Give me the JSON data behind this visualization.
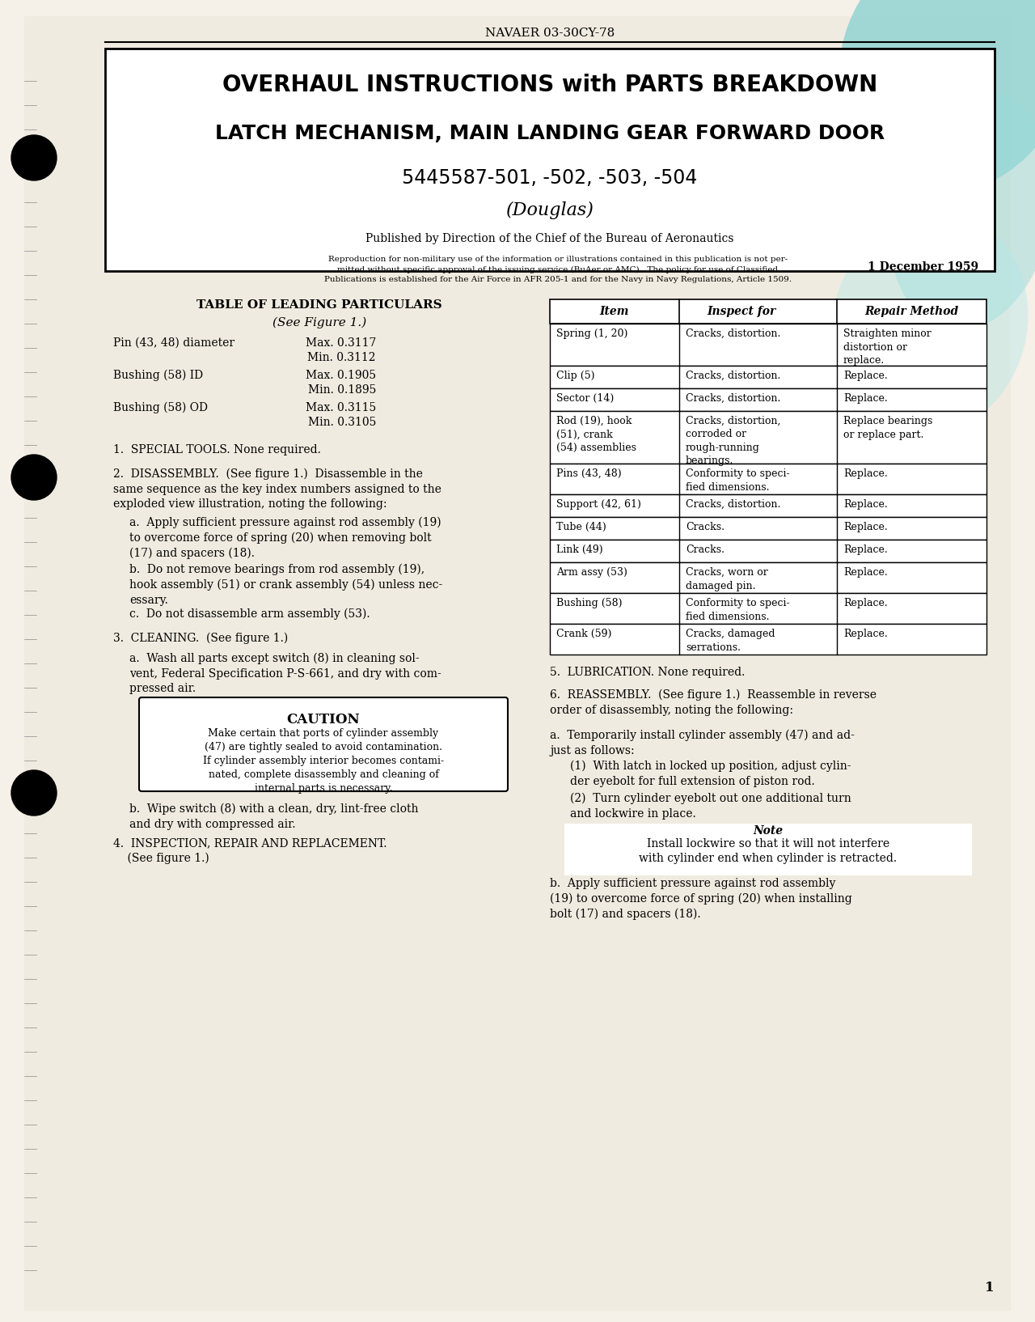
{
  "bg_color": "#f5f0e8",
  "page_color": "#f0ebe0",
  "header_text": "NAVAER 03-30CY-78",
  "title_line1": "OVERHAUL INSTRUCTIONS with PARTS BREAKDOWN",
  "title_line2": "LATCH MECHANISM, MAIN LANDING GEAR FORWARD DOOR",
  "title_line3": "5445587-501, -502, -503, -504",
  "title_line4": "(Douglas)",
  "published_by": "Published by Direction of the Chief of the Bureau of Aeronautics",
  "reproduction_text": "Reproduction for non-military use of the information or illustrations contained in this publication is not per-\nmitted without specific approval of the issuing service (BuAer or AMC). The policy for use of Classified\nPublications is established for the Air Force in AFR 205-1 and for the Navy in Navy Regulations, Article 1509.",
  "date_text": "1 December 1959",
  "table_of_leading_title": "TABLE OF LEADING PARTICULARS",
  "table_of_leading_subtitle": "(See Figure 1.)",
  "leading_particulars": [
    [
      "Pin (43, 48) diameter",
      "Max. 0.3117",
      "Min. 0.3112"
    ],
    [
      "Bushing (58) ID",
      "Max. 0.1905",
      "Min. 0.1895"
    ],
    [
      "Bushing (58) OD",
      "Max. 0.3115",
      "Min. 0.3105"
    ]
  ],
  "section1": "1.  SPECIAL TOOLS. None required.",
  "section2_title": "2.  DISASSEMBLY.",
  "section2_intro": "(See figure 1.)  Disassemble in the same sequence as the key index numbers assigned to the exploded view illustration, noting the following:",
  "section2a": "a.  Apply sufficient pressure against rod assembly (19) to overcome force of spring (20) when removing bolt (17) and spacers (18).",
  "section2b": "b.  Do not remove bearings from rod assembly (19), hook assembly (51) or crank assembly (54) unless necessary.",
  "section2c": "c.  Do not disassemble arm assembly (53).",
  "section3_title": "3.  CLEANING.",
  "section3_intro": "(See figure 1.)",
  "section3a": "a.  Wash all parts except switch (8) in cleaning solvent, Federal Specification P-S-661, and dry with compressed air.",
  "caution_text": "CAUTION",
  "caution_body": "Make certain that ports of cylinder assembly (47) are tightly sealed to avoid contamination. If cylinder assembly interior becomes contaminated, complete disassembly and cleaning of internal parts is necessary.",
  "section3b": "b.  Wipe switch (8) with a clean, dry, lint-free cloth and dry with compressed air.",
  "section4_title": "4.  INSPECTION, REPAIR AND REPLACEMENT.",
  "section4_intro": "(See figure 1.)",
  "inspection_table_headers": [
    "Item",
    "Inspect for",
    "Repair Method"
  ],
  "inspection_table_rows": [
    [
      "Spring (1, 20)",
      "Cracks, distortion.",
      "Straighten minor\ndistortion or\nreplace."
    ],
    [
      "Clip (5)",
      "Cracks, distortion.",
      "Replace."
    ],
    [
      "Sector (14)",
      "Cracks, distortion.",
      "Replace."
    ],
    [
      "Rod (19), hook\n(51), crank\n(54) assemblies",
      "Cracks, distortion,\ncorroded or\nrough-running\nbearings.",
      "Replace bearings\nor replace part."
    ],
    [
      "Pins (43, 48)",
      "Conformity to speci-\nfied dimensions.",
      "Replace."
    ],
    [
      "Support (42, 61)",
      "Cracks, distortion.",
      "Replace."
    ],
    [
      "Tube (44)",
      "Cracks.",
      "Replace."
    ],
    [
      "Link (49)",
      "Cracks.",
      "Replace."
    ],
    [
      "Arm assy (53)",
      "Cracks, worn or\ndamaged pin.",
      "Replace."
    ],
    [
      "Bushing (58)",
      "Conformity to speci-\nfied dimensions.",
      "Replace."
    ],
    [
      "Crank (59)",
      "Cracks, damaged\nserrations.",
      "Replace."
    ]
  ],
  "section5": "5.  LUBRICATION. None required.",
  "section6_title": "6.  REASSEMBLY.",
  "section6_intro": "(See figure 1.)  Reassemble in reverse order of disassembly, noting the following:",
  "section6a": "a.  Temporarily install cylinder assembly (47) and adjust as follows:",
  "section6a1": "(1)  With latch in locked up position, adjust cylinder eyebolt for full extension of piston rod.",
  "section6a2": "(2)  Turn cylinder eyebolt out one additional turn and lockwire in place.",
  "note_title": "Note",
  "note_body": "Install lockwire so that it will not interfere with cylinder end when cylinder is retracted.",
  "section6b": "b.  Apply sufficient pressure against rod assembly (19) to overcome force of spring (20) when installing bolt (17) and spacers (18).",
  "page_number": "1"
}
